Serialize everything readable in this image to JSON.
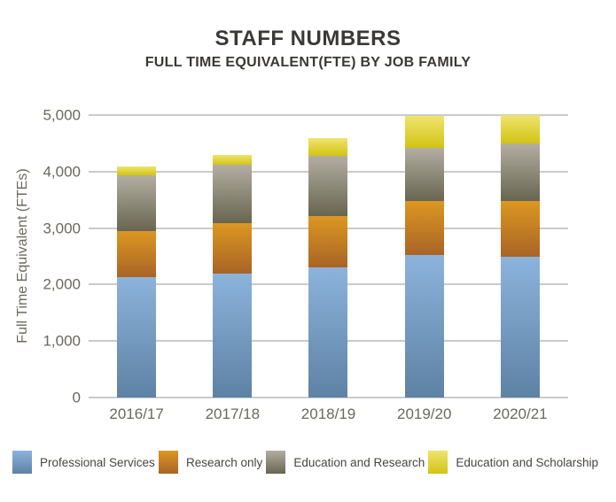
{
  "chart_data": {
    "type": "bar",
    "stacked": true,
    "title": "STAFF NUMBERS",
    "subtitle": "FULL TIME EQUIVALENT(FTE) BY JOB FAMILY",
    "ylabel": "Full Time Equivalent (FTEs)",
    "xlabel": "",
    "categories": [
      "2016/17",
      "2017/18",
      "2018/19",
      "2019/20",
      "2020/21"
    ],
    "series": [
      {
        "name": "Professional Services",
        "color_top": "#8CB3DC",
        "color_bottom": "#5E82A4",
        "values": [
          2130,
          2195,
          2305,
          2525,
          2600
        ]
      },
      {
        "name": "Research only",
        "color_top": "#DC9722",
        "color_bottom": "#A96426",
        "values": [
          815,
          895,
          910,
          955,
          1035
        ]
      },
      {
        "name": "Education and Research",
        "color_top": "#B3AEA2",
        "color_bottom": "#686550",
        "values": [
          990,
          1035,
          1065,
          940,
          1065
        ]
      },
      {
        "name": "Education and Scholarship",
        "color_top": "#EFE46E",
        "color_bottom": "#D2C413",
        "values": [
          155,
          170,
          315,
          565,
          520
        ]
      }
    ],
    "totals": [
      4090,
      4295,
      4595,
      4985,
      5220
    ],
    "ylim": [
      0,
      5000
    ],
    "yticks": [
      0,
      1000,
      2000,
      3000,
      4000,
      5000
    ],
    "ytick_labels": [
      "0",
      "1,000",
      "2,000",
      "3,000",
      "4,000",
      "5,000"
    ],
    "grid": true,
    "gridline_color": "#CBCBC9",
    "title_color": "#3B3936",
    "axis_text_color": "#6C685C",
    "legend_text_color": "#494540",
    "legend_position": "bottom"
  }
}
